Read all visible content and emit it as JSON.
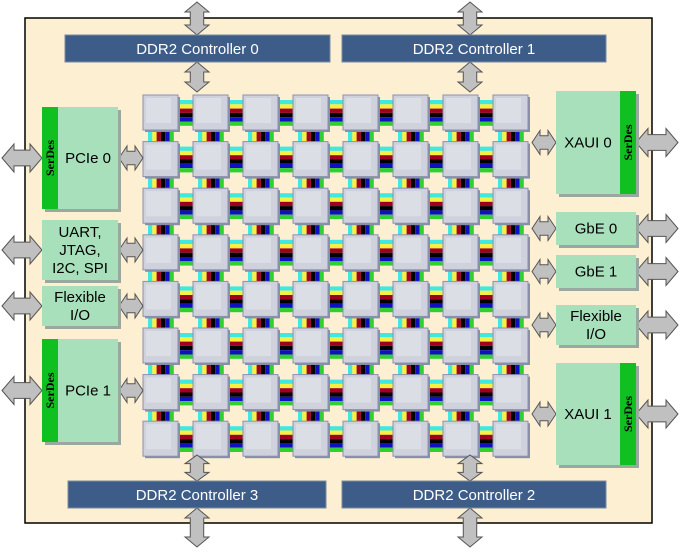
{
  "ddr": [
    "DDR2 Controller 0",
    "DDR2 Controller 1",
    "DDR2 Controller 3",
    "DDR2 Controller 2"
  ],
  "left_blocks": [
    {
      "lines": [
        "PCIe 0"
      ],
      "serdes": "SerDes"
    },
    {
      "lines": [
        "UART,",
        "JTAG,",
        "I2C, SPI"
      ]
    },
    {
      "lines": [
        "Flexible",
        "I/O"
      ]
    },
    {
      "lines": [
        "PCIe 1"
      ],
      "serdes": "SerDes"
    }
  ],
  "right_blocks": [
    {
      "lines": [
        "XAUI 0"
      ],
      "serdes": "SerDes"
    },
    {
      "lines": [
        "GbE 0"
      ]
    },
    {
      "lines": [
        "GbE 1"
      ]
    },
    {
      "lines": [
        "Flexible",
        "I/O"
      ]
    },
    {
      "lines": [
        "XAUI 1"
      ],
      "serdes": "SerDes"
    }
  ],
  "mesh": {
    "rows": 8,
    "cols": 8
  },
  "colors": {
    "chip_bg": "#fdf0d2",
    "ddr": "#3d5d88",
    "block": "#a8e0bc",
    "serdes": "#10c020",
    "tile": "#cfd2dc",
    "arrow": "#c0c0c0",
    "link_stripes": [
      "#40e8e0",
      "#f8f040",
      "#a00020",
      "#000000",
      "#1010c0",
      "#30d030"
    ]
  }
}
